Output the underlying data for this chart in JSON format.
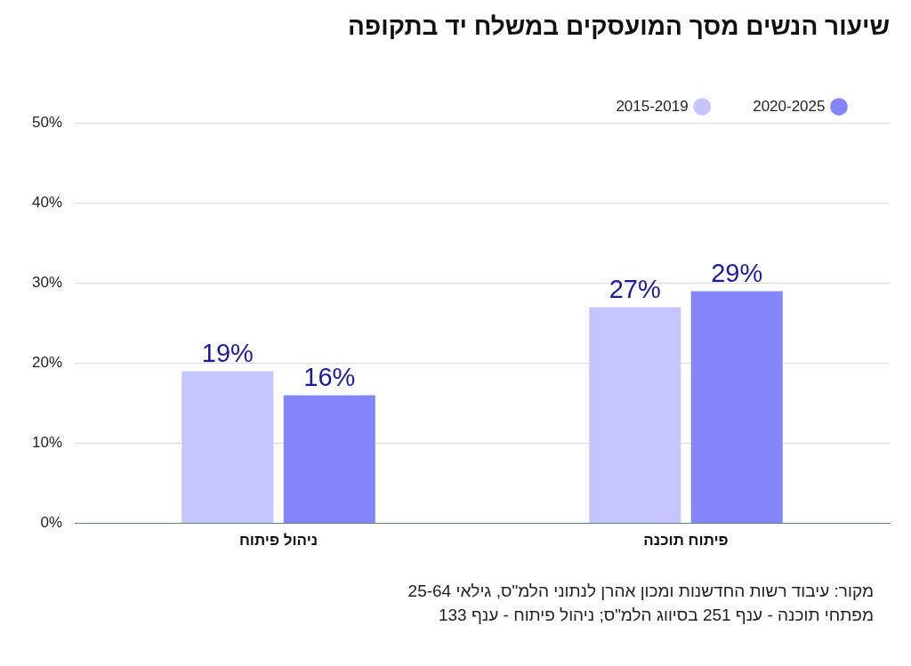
{
  "chart_data": {
    "type": "bar",
    "title": "שיעור הנשים מסך המועסקים במשלח יד בתקופה",
    "categories": [
      "ניהול פיתוח",
      "פיתוח תוכנה"
    ],
    "series": [
      {
        "name": "2015-2019",
        "color": "#c5c5fd",
        "values": [
          19,
          27
        ],
        "value_labels": [
          "19%",
          "27%"
        ]
      },
      {
        "name": "2020-2025",
        "color": "#8585fb",
        "values": [
          16,
          29
        ],
        "value_labels": [
          "16%",
          "29%"
        ]
      }
    ],
    "ylim": [
      0,
      50
    ],
    "yticks": [
      {
        "value": 0,
        "label": "0%"
      },
      {
        "value": 10,
        "label": "10%"
      },
      {
        "value": 20,
        "label": "20%"
      },
      {
        "value": 30,
        "label": "30%"
      },
      {
        "value": 40,
        "label": "40%"
      },
      {
        "value": 50,
        "label": "50%"
      }
    ],
    "grid": "y",
    "legend": "top right",
    "annotations": [
      "מקור: עיבוד רשות החדשנות ומכון אהרן לנתוני הלמ\"ס, גילאי 25-64",
      "מפתחי תוכנה - ענף 251 בסיווג הלמ\"ס; ניהול פיתוח - ענף 133"
    ]
  }
}
